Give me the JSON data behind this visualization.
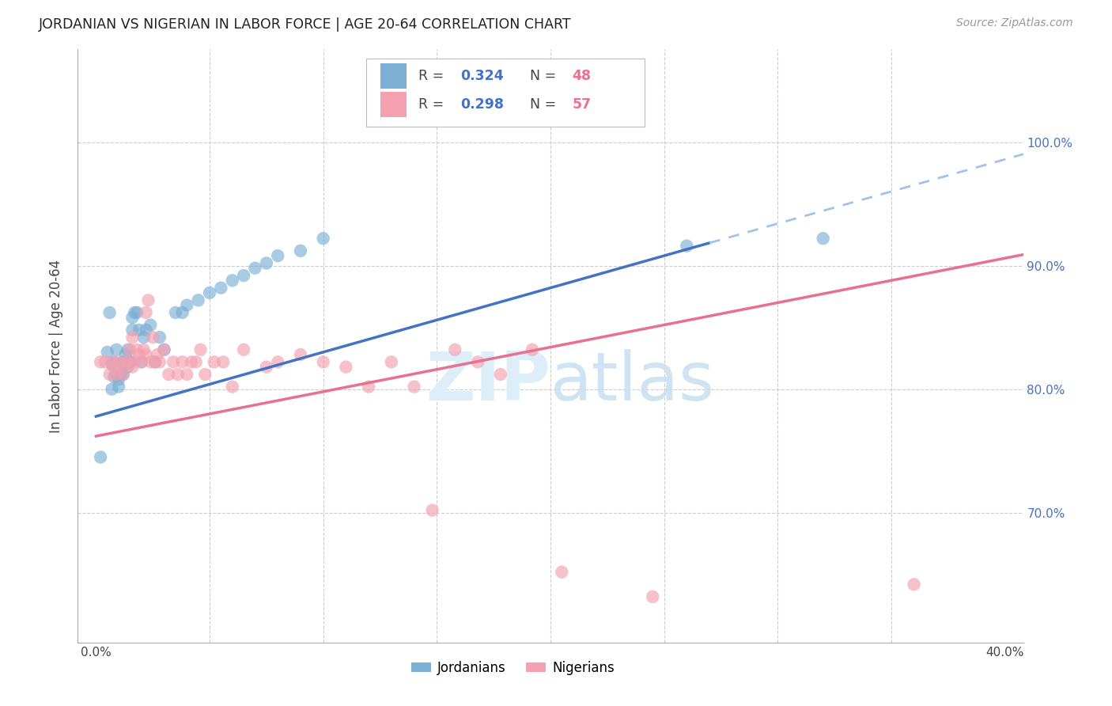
{
  "title": "JORDANIAN VS NIGERIAN IN LABOR FORCE | AGE 20-64 CORRELATION CHART",
  "source": "Source: ZipAtlas.com",
  "ylabel": "In Labor Force | Age 20-64",
  "x_min": -0.008,
  "x_max": 0.408,
  "y_min": 0.595,
  "y_max": 1.075,
  "y_ticks": [
    0.7,
    0.8,
    0.9,
    1.0
  ],
  "y_tick_labels": [
    "70.0%",
    "80.0%",
    "90.0%",
    "100.0%"
  ],
  "x_ticks": [
    0.0,
    0.05,
    0.1,
    0.15,
    0.2,
    0.25,
    0.3,
    0.35,
    0.4
  ],
  "x_tick_labels_show": [
    "0.0%",
    "40.0%"
  ],
  "grid_color": "#cccccc",
  "background_color": "#ffffff",
  "jordanian_color": "#7bafd4",
  "nigerian_color": "#f4a0b0",
  "trend_jordan_color": "#4472c4",
  "trend_nigeria_color": "#e87090",
  "trend_jordan_dashed_color": "#a0c4e8",
  "r_value_color": "#4472c4",
  "n_value_color": "#e87090",
  "watermark_color": "#ddeef8",
  "jordanian_x": [
    0.002,
    0.005,
    0.006,
    0.007,
    0.007,
    0.008,
    0.008,
    0.009,
    0.009,
    0.01,
    0.01,
    0.011,
    0.011,
    0.012,
    0.012,
    0.013,
    0.013,
    0.014,
    0.014,
    0.015,
    0.015,
    0.016,
    0.016,
    0.017,
    0.018,
    0.019,
    0.02,
    0.021,
    0.022,
    0.024,
    0.026,
    0.028,
    0.03,
    0.035,
    0.038,
    0.04,
    0.045,
    0.05,
    0.055,
    0.06,
    0.065,
    0.07,
    0.075,
    0.08,
    0.09,
    0.1,
    0.26,
    0.32
  ],
  "jordanian_y": [
    0.745,
    0.83,
    0.862,
    0.82,
    0.8,
    0.81,
    0.822,
    0.832,
    0.812,
    0.802,
    0.808,
    0.812,
    0.818,
    0.822,
    0.812,
    0.828,
    0.822,
    0.818,
    0.832,
    0.822,
    0.822,
    0.858,
    0.848,
    0.862,
    0.862,
    0.848,
    0.822,
    0.842,
    0.848,
    0.852,
    0.822,
    0.842,
    0.832,
    0.862,
    0.862,
    0.868,
    0.872,
    0.878,
    0.882,
    0.888,
    0.892,
    0.898,
    0.902,
    0.908,
    0.912,
    0.922,
    0.916,
    0.922
  ],
  "nigerian_x": [
    0.002,
    0.004,
    0.006,
    0.007,
    0.008,
    0.009,
    0.01,
    0.011,
    0.012,
    0.013,
    0.014,
    0.015,
    0.016,
    0.016,
    0.017,
    0.018,
    0.019,
    0.02,
    0.021,
    0.022,
    0.022,
    0.023,
    0.024,
    0.025,
    0.026,
    0.027,
    0.028,
    0.03,
    0.032,
    0.034,
    0.036,
    0.038,
    0.04,
    0.042,
    0.044,
    0.046,
    0.048,
    0.052,
    0.056,
    0.06,
    0.065,
    0.075,
    0.08,
    0.09,
    0.1,
    0.11,
    0.12,
    0.13,
    0.14,
    0.148,
    0.158,
    0.168,
    0.178,
    0.192,
    0.205,
    0.245,
    0.36
  ],
  "nigerian_y": [
    0.822,
    0.822,
    0.812,
    0.822,
    0.818,
    0.812,
    0.822,
    0.818,
    0.812,
    0.822,
    0.822,
    0.832,
    0.842,
    0.818,
    0.822,
    0.832,
    0.828,
    0.822,
    0.832,
    0.828,
    0.862,
    0.872,
    0.822,
    0.842,
    0.822,
    0.828,
    0.822,
    0.832,
    0.812,
    0.822,
    0.812,
    0.822,
    0.812,
    0.822,
    0.822,
    0.832,
    0.812,
    0.822,
    0.822,
    0.802,
    0.832,
    0.818,
    0.822,
    0.828,
    0.822,
    0.818,
    0.802,
    0.822,
    0.802,
    0.702,
    0.832,
    0.822,
    0.812,
    0.832,
    0.652,
    0.632,
    0.642
  ],
  "jordan_trend_x0": 0.0,
  "jordan_trend_x1": 0.27,
  "jordan_trend_x_dash0": 0.27,
  "jordan_trend_x_dash1": 0.41,
  "jordan_trend_y_at_0": 0.778,
  "jordan_trend_slope": 0.52,
  "nigeria_trend_y_at_0": 0.762,
  "nigeria_trend_slope": 0.36,
  "nigeria_trend_x0": 0.0,
  "nigeria_trend_x1": 0.41
}
